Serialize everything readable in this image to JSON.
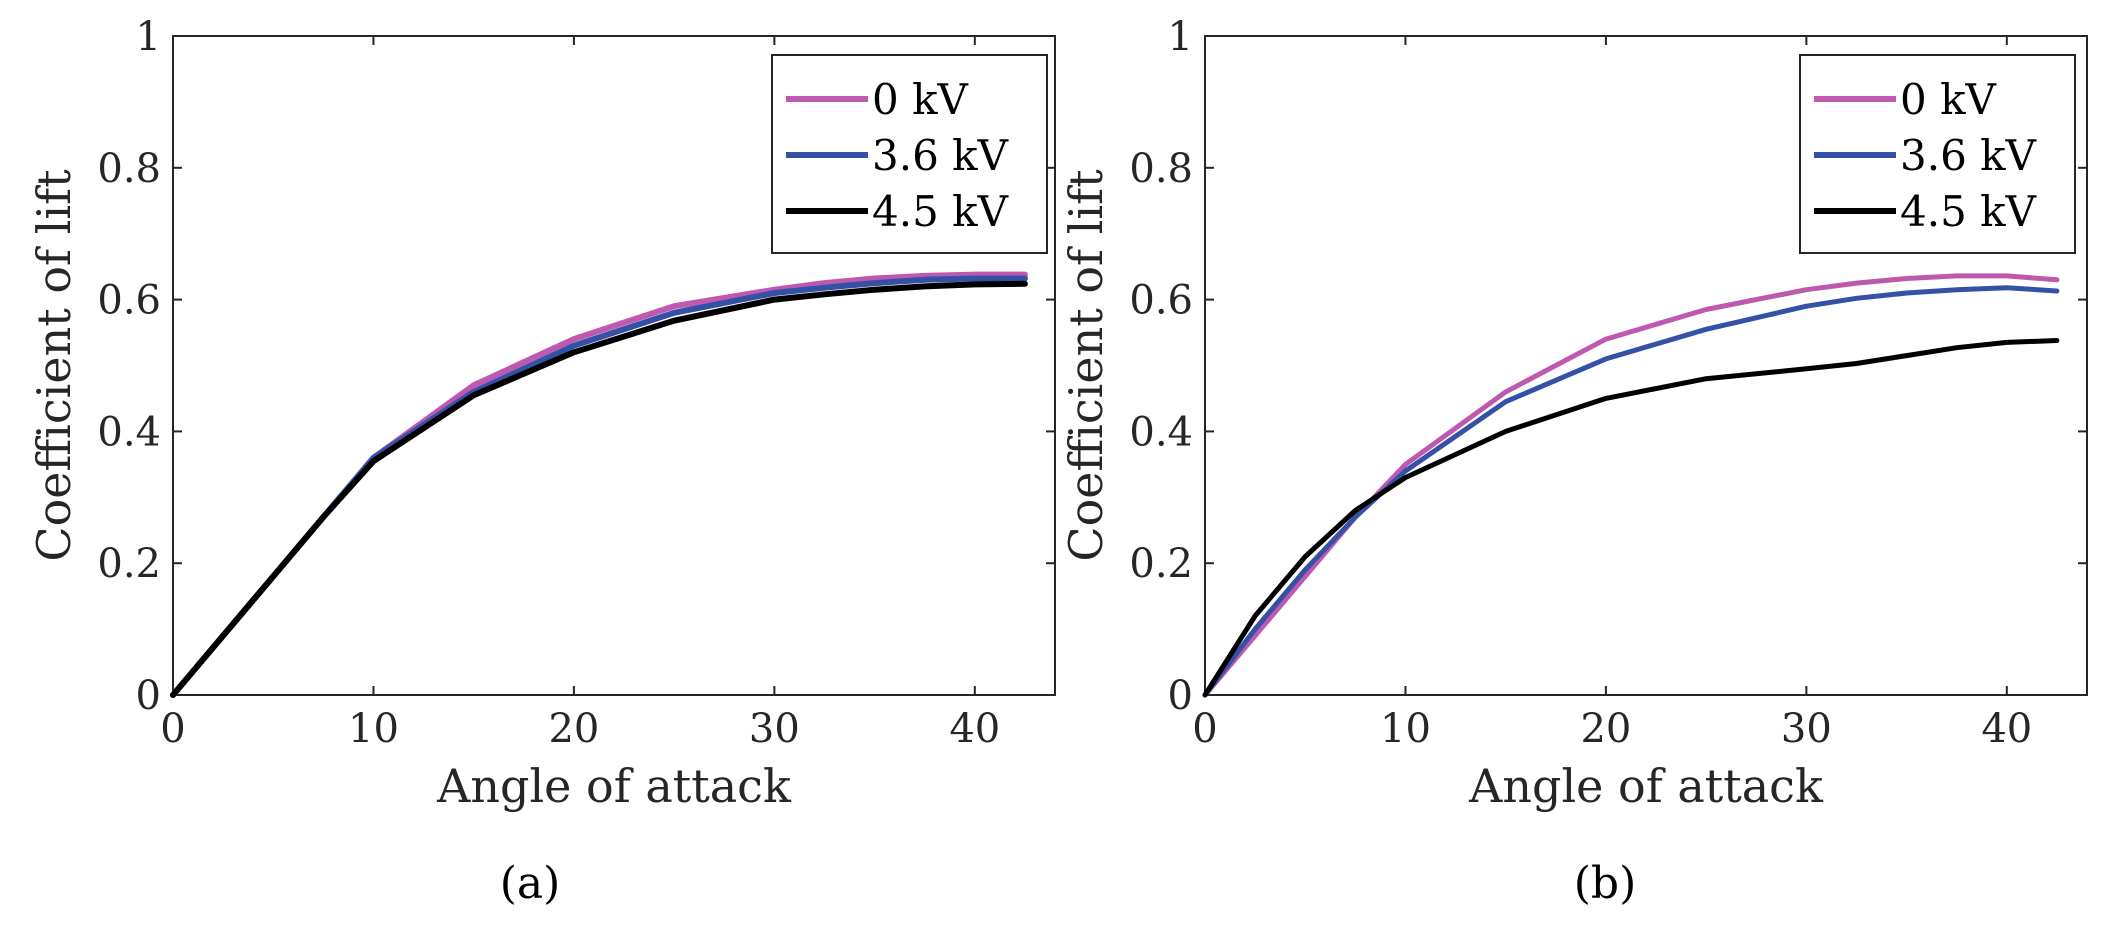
{
  "chart_data": [
    {
      "type": "line",
      "panel_label": "(a)",
      "xlabel": "Angle of attack",
      "ylabel": "Coefficient of lift",
      "xlim": [
        0,
        44
      ],
      "ylim": [
        0,
        1
      ],
      "xticks": [
        0,
        10,
        20,
        30,
        40
      ],
      "yticks": [
        0,
        0.2,
        0.4,
        0.6,
        0.8,
        1
      ],
      "ytick_labels": [
        "0",
        "0.2",
        "0.4",
        "0.6",
        "0.8",
        "1"
      ],
      "grid": false,
      "legend": "top-right",
      "x": [
        0,
        2.5,
        5,
        7.5,
        10,
        15,
        20,
        25,
        30,
        32.5,
        35,
        37.5,
        40,
        42.5
      ],
      "series": [
        {
          "name": "0 kV",
          "color": "#BF59B0",
          "values": [
            0,
            0.09,
            0.18,
            0.27,
            0.36,
            0.47,
            0.54,
            0.59,
            0.615,
            0.625,
            0.632,
            0.636,
            0.638,
            0.638
          ]
        },
        {
          "name": "3.6 kV",
          "color": "#3451A6",
          "values": [
            0,
            0.09,
            0.18,
            0.27,
            0.36,
            0.46,
            0.53,
            0.58,
            0.61,
            0.618,
            0.625,
            0.63,
            0.632,
            0.632
          ]
        },
        {
          "name": "4.5 kV",
          "color": "#000000",
          "values": [
            0,
            0.09,
            0.18,
            0.27,
            0.355,
            0.455,
            0.52,
            0.568,
            0.6,
            0.608,
            0.615,
            0.62,
            0.623,
            0.624
          ]
        }
      ]
    },
    {
      "type": "line",
      "panel_label": "(b)",
      "xlabel": "Angle of attack",
      "ylabel": "Coefficient of lift",
      "xlim": [
        0,
        44
      ],
      "ylim": [
        0,
        1
      ],
      "xticks": [
        0,
        10,
        20,
        30,
        40
      ],
      "yticks": [
        0,
        0.2,
        0.4,
        0.6,
        0.8,
        1
      ],
      "ytick_labels": [
        "0",
        "0.2",
        "0.4",
        "0.6",
        "0.8",
        "1"
      ],
      "grid": false,
      "legend": "top-right",
      "x": [
        0,
        2.5,
        5,
        7.5,
        10,
        15,
        20,
        25,
        30,
        32.5,
        35,
        37.5,
        40,
        42.5
      ],
      "series": [
        {
          "name": "0 kV",
          "color": "#BF59B0",
          "values": [
            0,
            0.09,
            0.18,
            0.27,
            0.35,
            0.46,
            0.54,
            0.585,
            0.615,
            0.625,
            0.632,
            0.636,
            0.636,
            0.63
          ]
        },
        {
          "name": "3.6 kV",
          "color": "#3451A6",
          "values": [
            0,
            0.1,
            0.19,
            0.27,
            0.34,
            0.445,
            0.51,
            0.555,
            0.59,
            0.602,
            0.61,
            0.615,
            0.618,
            0.613
          ]
        },
        {
          "name": "4.5 kV",
          "color": "#000000",
          "values": [
            0,
            0.12,
            0.21,
            0.28,
            0.33,
            0.4,
            0.45,
            0.48,
            0.495,
            0.503,
            0.515,
            0.527,
            0.535,
            0.538
          ]
        }
      ]
    }
  ]
}
